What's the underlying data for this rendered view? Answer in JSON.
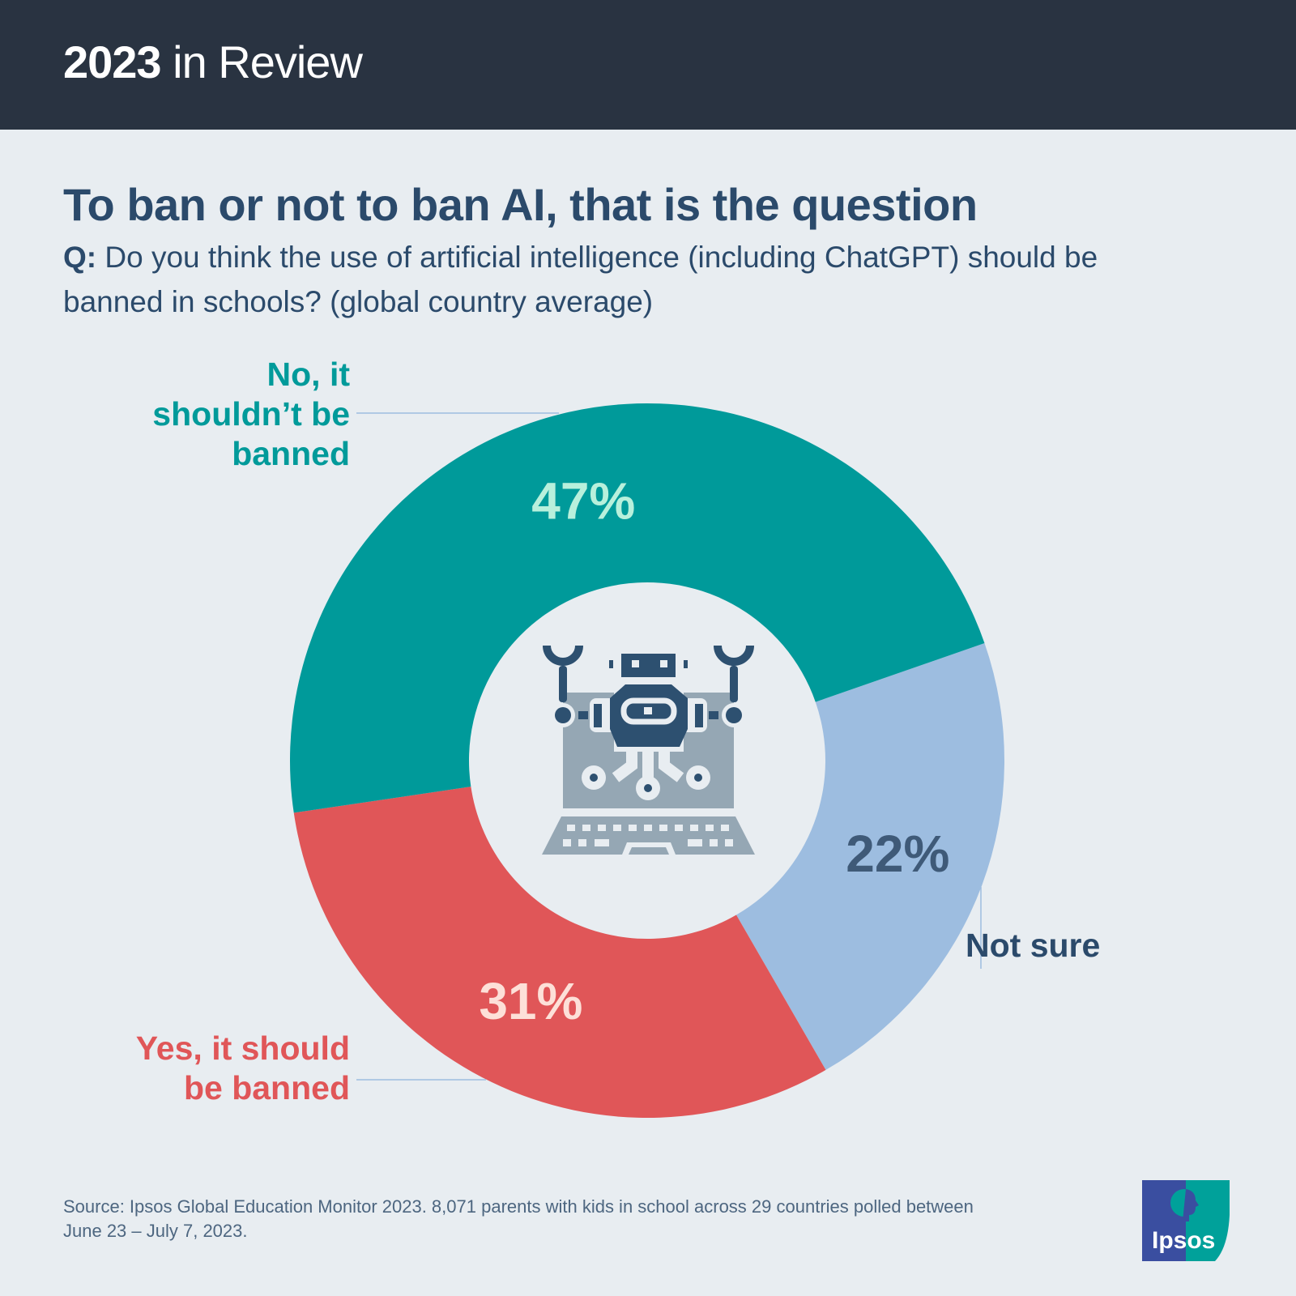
{
  "header": {
    "title_bold": "2023",
    "title_rest": " in Review"
  },
  "title": "To ban or not to ban AI, that is the question",
  "question": {
    "prefix": "Q:",
    "text": " Do you think the use of artificial intelligence (including ChatGPT) should be banned in schools? (global country average)"
  },
  "chart_data": {
    "type": "pie",
    "variant": "donut",
    "categories": [
      "Not sure",
      "Yes, it should be banned",
      "No, it shouldn’t be banned"
    ],
    "values": [
      22,
      31,
      47
    ],
    "value_labels": [
      "22%",
      "31%",
      "47%"
    ],
    "colors": [
      "#9dbde0",
      "#e05658",
      "#009a9a"
    ],
    "label_colors": [
      "#3f5a78",
      "#fde0d8",
      "#b8f0dc"
    ],
    "center_icon": "robot-laptop-icon"
  },
  "labels": {
    "no_line1": "No, it",
    "no_line2": "shouldn’t be",
    "no_line3": "banned",
    "yes_line1": "Yes, it should",
    "yes_line2": "be banned",
    "not_sure": "Not sure"
  },
  "source": "Source: Ipsos Global Education Monitor 2023. 8,071 parents with kids in school across 29 countries polled between June 23 – July 7, 2023.",
  "logo": {
    "text": "Ipsos"
  }
}
